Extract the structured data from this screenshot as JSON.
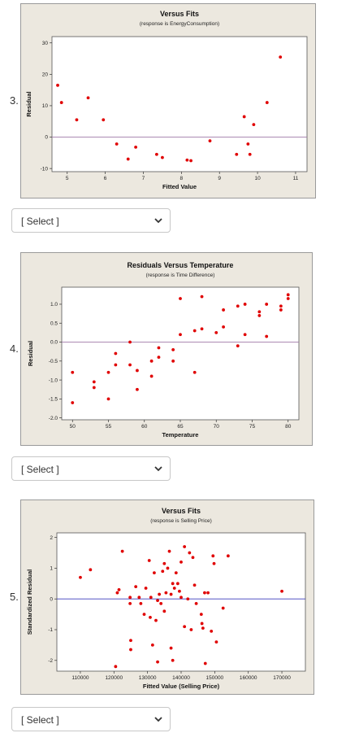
{
  "questions": [
    {
      "number": "3.",
      "select_label": "[ Select ]"
    },
    {
      "number": "4.",
      "select_label": "[ Select ]"
    },
    {
      "number": "5.",
      "select_label": "[ Select ]"
    }
  ],
  "chart_data": [
    {
      "type": "scatter",
      "title": "Versus Fits",
      "subtitle": "(response is EnergyConsumption)",
      "xlabel": "Fitted Value",
      "ylabel": "Residual",
      "xlim": [
        4.6,
        11.3
      ],
      "ylim": [
        -11,
        32
      ],
      "xticks": [
        5,
        6,
        7,
        8,
        9,
        10,
        11
      ],
      "yticks": [
        -10,
        0,
        10,
        20,
        30
      ],
      "ref_line": 0,
      "point_color": "#e00000",
      "ref_color": "#a07aa8",
      "points": [
        {
          "x": 4.75,
          "y": 16.5
        },
        {
          "x": 4.85,
          "y": 11
        },
        {
          "x": 5.25,
          "y": 5.5
        },
        {
          "x": 5.55,
          "y": 12.5
        },
        {
          "x": 5.95,
          "y": 5.5
        },
        {
          "x": 6.3,
          "y": -2.2
        },
        {
          "x": 6.6,
          "y": -7
        },
        {
          "x": 6.8,
          "y": -3.2
        },
        {
          "x": 7.35,
          "y": -5.5
        },
        {
          "x": 7.5,
          "y": -6.5
        },
        {
          "x": 8.15,
          "y": -7.3
        },
        {
          "x": 8.25,
          "y": -7.5
        },
        {
          "x": 8.75,
          "y": -1.2
        },
        {
          "x": 9.45,
          "y": -5.5
        },
        {
          "x": 9.65,
          "y": 6.5
        },
        {
          "x": 9.75,
          "y": -2.2
        },
        {
          "x": 9.8,
          "y": -5.5
        },
        {
          "x": 9.9,
          "y": 4
        },
        {
          "x": 10.25,
          "y": 11
        },
        {
          "x": 10.6,
          "y": 25.5
        }
      ]
    },
    {
      "type": "scatter",
      "title": "Residuals Versus Temperature",
      "subtitle": "(response is Time Difference)",
      "xlabel": "Temperature",
      "ylabel": "Residual",
      "xlim": [
        48.5,
        81.5
      ],
      "ylim": [
        -2.05,
        1.45
      ],
      "xticks": [
        50,
        55,
        60,
        65,
        70,
        75,
        80
      ],
      "yticks": [
        -2.0,
        -1.5,
        -1.0,
        -0.5,
        0.0,
        0.5,
        1.0
      ],
      "ytick_labels": [
        "-2.0",
        "-1.5",
        "-1.0",
        "-0.5",
        "0.0",
        "0.5",
        "1.0"
      ],
      "ref_line": 0,
      "point_color": "#e00000",
      "ref_color": "#a07aa8",
      "points": [
        {
          "x": 50,
          "y": -0.8
        },
        {
          "x": 50,
          "y": -1.6
        },
        {
          "x": 53,
          "y": -1.05
        },
        {
          "x": 53,
          "y": -1.2
        },
        {
          "x": 55,
          "y": -0.8
        },
        {
          "x": 55,
          "y": -1.5
        },
        {
          "x": 56,
          "y": -0.3
        },
        {
          "x": 56,
          "y": -0.6
        },
        {
          "x": 58,
          "y": 0.0
        },
        {
          "x": 58,
          "y": -0.6
        },
        {
          "x": 59,
          "y": -0.75
        },
        {
          "x": 59,
          "y": -1.25
        },
        {
          "x": 61,
          "y": -0.5
        },
        {
          "x": 61,
          "y": -0.9
        },
        {
          "x": 62,
          "y": -0.15
        },
        {
          "x": 62,
          "y": -0.4
        },
        {
          "x": 64,
          "y": -0.2
        },
        {
          "x": 64,
          "y": -0.5
        },
        {
          "x": 65,
          "y": 1.15
        },
        {
          "x": 65,
          "y": 0.2
        },
        {
          "x": 67,
          "y": 0.3
        },
        {
          "x": 67,
          "y": -0.8
        },
        {
          "x": 68,
          "y": 1.2
        },
        {
          "x": 68,
          "y": 0.35
        },
        {
          "x": 70,
          "y": 0.25
        },
        {
          "x": 71,
          "y": 0.85
        },
        {
          "x": 71,
          "y": 0.4
        },
        {
          "x": 73,
          "y": 0.95
        },
        {
          "x": 73,
          "y": -0.1
        },
        {
          "x": 74,
          "y": 1.0
        },
        {
          "x": 74,
          "y": 0.2
        },
        {
          "x": 76,
          "y": 0.8
        },
        {
          "x": 76,
          "y": 0.7
        },
        {
          "x": 77,
          "y": 1.0
        },
        {
          "x": 77,
          "y": 0.15
        },
        {
          "x": 79,
          "y": 0.95
        },
        {
          "x": 79,
          "y": 0.85
        },
        {
          "x": 80,
          "y": 1.25
        },
        {
          "x": 80,
          "y": 1.15
        }
      ]
    },
    {
      "type": "scatter",
      "title": "Versus Fits",
      "subtitle": "(response is Selling Price)",
      "xlabel": "Fitted Value (Selling Price)",
      "ylabel": "Standardized Residual",
      "xlim": [
        103000,
        177000
      ],
      "ylim": [
        -2.35,
        2.15
      ],
      "xticks": [
        110000,
        120000,
        130000,
        140000,
        150000,
        160000,
        170000
      ],
      "yticks": [
        -2,
        -1,
        0,
        1,
        2
      ],
      "ref_line": 0,
      "point_color": "#e00000",
      "ref_color": "#3b3bbd",
      "points": [
        {
          "x": 110000,
          "y": 0.7
        },
        {
          "x": 113000,
          "y": 0.95
        },
        {
          "x": 121000,
          "y": 0.2
        },
        {
          "x": 121500,
          "y": 0.3
        },
        {
          "x": 122500,
          "y": 1.55
        },
        {
          "x": 120500,
          "y": -2.2
        },
        {
          "x": 124800,
          "y": 0.05
        },
        {
          "x": 124800,
          "y": -0.15
        },
        {
          "x": 125000,
          "y": -1.35
        },
        {
          "x": 125000,
          "y": -1.65
        },
        {
          "x": 126500,
          "y": 0.4
        },
        {
          "x": 127500,
          "y": 0.05
        },
        {
          "x": 128000,
          "y": -0.15
        },
        {
          "x": 129000,
          "y": -0.5
        },
        {
          "x": 129500,
          "y": 0.35
        },
        {
          "x": 130500,
          "y": 1.25
        },
        {
          "x": 130800,
          "y": -0.6
        },
        {
          "x": 131000,
          "y": 0.05
        },
        {
          "x": 131500,
          "y": -1.5
        },
        {
          "x": 132000,
          "y": 0.85
        },
        {
          "x": 132500,
          "y": -0.7
        },
        {
          "x": 133000,
          "y": -0.05
        },
        {
          "x": 133000,
          "y": -2.05
        },
        {
          "x": 133500,
          "y": 0.15
        },
        {
          "x": 134000,
          "y": -0.15
        },
        {
          "x": 134500,
          "y": 0.9
        },
        {
          "x": 135000,
          "y": -0.4
        },
        {
          "x": 135000,
          "y": 1.15
        },
        {
          "x": 135500,
          "y": 0.2
        },
        {
          "x": 136000,
          "y": 1.0
        },
        {
          "x": 136500,
          "y": 1.55
        },
        {
          "x": 137000,
          "y": 0.15
        },
        {
          "x": 137000,
          "y": -1.6
        },
        {
          "x": 137500,
          "y": 0.5
        },
        {
          "x": 137500,
          "y": -2.0
        },
        {
          "x": 138000,
          "y": 0.35
        },
        {
          "x": 138500,
          "y": 0.85
        },
        {
          "x": 139000,
          "y": 0.5
        },
        {
          "x": 139500,
          "y": 0.25
        },
        {
          "x": 140000,
          "y": 1.2
        },
        {
          "x": 140000,
          "y": 0.05
        },
        {
          "x": 141000,
          "y": 1.7
        },
        {
          "x": 141000,
          "y": -0.9
        },
        {
          "x": 142000,
          "y": 0.0
        },
        {
          "x": 142500,
          "y": 1.5
        },
        {
          "x": 143000,
          "y": -1.0
        },
        {
          "x": 143500,
          "y": 1.35
        },
        {
          "x": 144000,
          "y": 0.45
        },
        {
          "x": 144500,
          "y": -0.15
        },
        {
          "x": 146000,
          "y": -0.5
        },
        {
          "x": 146200,
          "y": -0.8
        },
        {
          "x": 146500,
          "y": -0.95
        },
        {
          "x": 147000,
          "y": 0.2
        },
        {
          "x": 147200,
          "y": -2.1
        },
        {
          "x": 148000,
          "y": 0.2
        },
        {
          "x": 149000,
          "y": -1.05
        },
        {
          "x": 149500,
          "y": 1.4
        },
        {
          "x": 149800,
          "y": 1.15
        },
        {
          "x": 150500,
          "y": -1.4
        },
        {
          "x": 152500,
          "y": -0.3
        },
        {
          "x": 154000,
          "y": 1.4
        },
        {
          "x": 170000,
          "y": 0.25
        }
      ]
    }
  ]
}
